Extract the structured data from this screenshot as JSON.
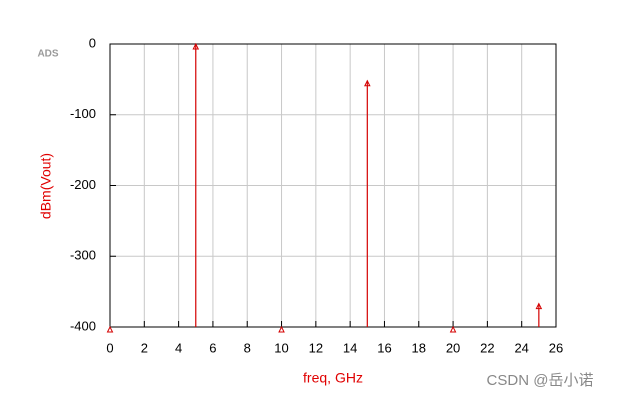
{
  "chart_data": {
    "type": "stem",
    "watermark": "ADS",
    "credit": "CSDN @岳小诺",
    "x_label": "freq, GHz",
    "y_label": "dBm(Vout)",
    "x": [
      0,
      5,
      10,
      15,
      20,
      25
    ],
    "values": [
      -400,
      0,
      -400,
      -52,
      -400,
      -367
    ],
    "color": "#d40000",
    "xlim": [
      0,
      26
    ],
    "xticks": [
      0,
      2,
      4,
      6,
      8,
      10,
      12,
      14,
      16,
      18,
      20,
      22,
      24,
      26
    ],
    "ylim": [
      -400,
      0
    ],
    "yticks": [
      0,
      -100,
      -200,
      -300,
      -400
    ],
    "grid": true
  }
}
